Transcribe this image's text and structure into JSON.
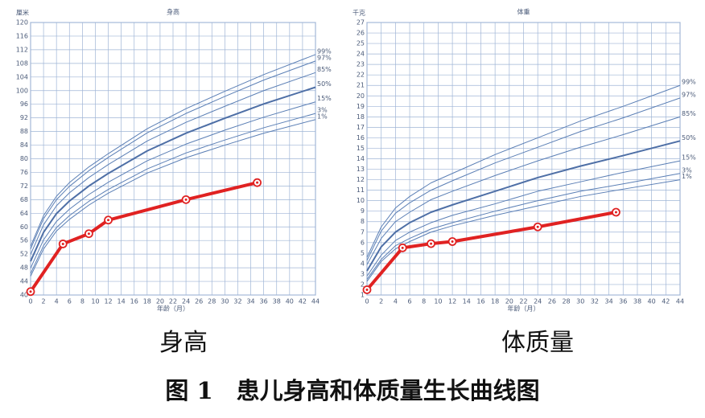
{
  "chart_data": [
    {
      "type": "line",
      "title": "身高",
      "y_label": "厘米",
      "x_label": "年龄（月）",
      "xlim": [
        0,
        44
      ],
      "xticks": [
        0,
        2,
        4,
        6,
        8,
        10,
        12,
        14,
        16,
        18,
        20,
        22,
        24,
        26,
        28,
        30,
        32,
        34,
        36,
        38,
        40,
        42,
        44
      ],
      "ylim": [
        40,
        120
      ],
      "yticks": [
        40,
        44,
        48,
        52,
        56,
        60,
        64,
        68,
        72,
        76,
        80,
        84,
        88,
        92,
        96,
        100,
        104,
        108,
        112,
        116,
        120
      ],
      "grid": true,
      "series": [
        {
          "name": "99%",
          "color": "#5b7fb5",
          "width": 1,
          "x": [
            0,
            2,
            4,
            6,
            9,
            12,
            18,
            24,
            30,
            36,
            44
          ],
          "values": [
            54.3,
            63.3,
            69.0,
            73.0,
            77.6,
            81.5,
            88.8,
            94.7,
            99.8,
            104.7,
            110.6
          ]
        },
        {
          "name": "97%",
          "color": "#5b7fb5",
          "width": 1,
          "x": [
            0,
            2,
            4,
            6,
            9,
            12,
            18,
            24,
            30,
            36,
            44
          ],
          "values": [
            53.5,
            62.4,
            68.0,
            71.9,
            76.5,
            80.4,
            87.6,
            93.3,
            98.3,
            103.1,
            108.7
          ]
        },
        {
          "name": "85%",
          "color": "#5b7fb5",
          "width": 1,
          "x": [
            0,
            2,
            4,
            6,
            9,
            12,
            18,
            24,
            30,
            36,
            44
          ],
          "values": [
            51.9,
            60.6,
            66.2,
            70.0,
            74.5,
            78.3,
            85.2,
            90.7,
            95.4,
            100.0,
            105.3
          ]
        },
        {
          "name": "50%",
          "color": "#4e6fa6",
          "width": 2,
          "x": [
            0,
            2,
            4,
            6,
            9,
            12,
            18,
            24,
            30,
            36,
            44
          ],
          "values": [
            49.9,
            58.4,
            63.9,
            67.6,
            72.0,
            75.7,
            82.3,
            87.5,
            91.9,
            96.1,
            101.0
          ]
        },
        {
          "name": "15%",
          "color": "#5b7fb5",
          "width": 1,
          "x": [
            0,
            2,
            4,
            6,
            9,
            12,
            18,
            24,
            30,
            36,
            44
          ],
          "values": [
            47.9,
            56.2,
            61.6,
            65.2,
            69.5,
            73.1,
            79.4,
            84.3,
            88.4,
            92.2,
            96.7
          ]
        },
        {
          "name": "3%",
          "color": "#5b7fb5",
          "width": 1,
          "x": [
            0,
            2,
            4,
            6,
            9,
            12,
            18,
            24,
            30,
            36,
            44
          ],
          "values": [
            46.3,
            54.5,
            59.8,
            63.3,
            67.5,
            71.0,
            77.0,
            81.7,
            85.5,
            89.1,
            93.3
          ]
        },
        {
          "name": "1%",
          "color": "#5b7fb5",
          "width": 1,
          "x": [
            0,
            2,
            4,
            6,
            9,
            12,
            18,
            24,
            30,
            36,
            44
          ],
          "values": [
            45.5,
            53.5,
            58.8,
            62.2,
            66.4,
            69.9,
            75.8,
            80.3,
            84.0,
            87.5,
            91.5
          ]
        },
        {
          "color": "#e02222",
          "width": 4,
          "markers": true,
          "x": [
            0,
            5,
            9,
            12,
            24,
            35
          ],
          "values": [
            41,
            55,
            58,
            62,
            68,
            73
          ]
        }
      ]
    },
    {
      "type": "line",
      "title": "体重",
      "y_label": "千克",
      "x_label": "年龄（月）",
      "xlim": [
        0,
        44
      ],
      "xticks": [
        0,
        2,
        4,
        6,
        8,
        10,
        12,
        14,
        16,
        18,
        20,
        22,
        24,
        26,
        28,
        30,
        32,
        34,
        36,
        38,
        40,
        42,
        44
      ],
      "ylim": [
        1,
        27
      ],
      "yticks": [
        1,
        2,
        3,
        4,
        5,
        6,
        7,
        8,
        9,
        10,
        11,
        12,
        13,
        14,
        15,
        16,
        17,
        18,
        19,
        20,
        21,
        22,
        23,
        24,
        25,
        26,
        27
      ],
      "grid": true,
      "series": [
        {
          "name": "99%",
          "color": "#5b7fb5",
          "width": 1,
          "x": [
            0,
            2,
            4,
            6,
            9,
            12,
            18,
            24,
            30,
            36,
            44
          ],
          "values": [
            4.6,
            7.5,
            9.3,
            10.4,
            11.7,
            12.6,
            14.4,
            16.0,
            17.6,
            19.0,
            21.0
          ]
        },
        {
          "name": "97%",
          "color": "#5b7fb5",
          "width": 1,
          "x": [
            0,
            2,
            4,
            6,
            9,
            12,
            18,
            24,
            30,
            36,
            44
          ],
          "values": [
            4.3,
            7.1,
            8.8,
            9.8,
            11.0,
            11.9,
            13.6,
            15.1,
            16.6,
            17.9,
            19.8
          ]
        },
        {
          "name": "85%",
          "color": "#5b7fb5",
          "width": 1,
          "x": [
            0,
            2,
            4,
            6,
            9,
            12,
            18,
            24,
            30,
            36,
            44
          ],
          "values": [
            3.9,
            6.4,
            8.0,
            8.9,
            10.1,
            10.9,
            12.4,
            13.8,
            15.1,
            16.3,
            18.0
          ]
        },
        {
          "name": "50%",
          "color": "#4e6fa6",
          "width": 2,
          "x": [
            0,
            2,
            4,
            6,
            9,
            12,
            18,
            24,
            30,
            36,
            44
          ],
          "values": [
            3.3,
            5.6,
            7.0,
            7.9,
            8.9,
            9.6,
            10.9,
            12.2,
            13.3,
            14.3,
            15.7
          ]
        },
        {
          "name": "15%",
          "color": "#5b7fb5",
          "width": 1,
          "x": [
            0,
            2,
            4,
            6,
            9,
            12,
            18,
            24,
            30,
            36,
            44
          ],
          "values": [
            2.8,
            4.8,
            6.2,
            7.0,
            7.9,
            8.6,
            9.7,
            10.9,
            11.8,
            12.7,
            13.8
          ]
        },
        {
          "name": "3%",
          "color": "#5b7fb5",
          "width": 1,
          "x": [
            0,
            2,
            4,
            6,
            9,
            12,
            18,
            24,
            30,
            36,
            44
          ],
          "values": [
            2.5,
            4.4,
            5.7,
            6.4,
            7.3,
            7.9,
            9.0,
            10.0,
            10.9,
            11.6,
            12.6
          ]
        },
        {
          "name": "1%",
          "color": "#5b7fb5",
          "width": 1,
          "x": [
            0,
            2,
            4,
            6,
            9,
            12,
            18,
            24,
            30,
            36,
            44
          ],
          "values": [
            2.3,
            4.2,
            5.4,
            6.1,
            7.0,
            7.6,
            8.6,
            9.5,
            10.4,
            11.1,
            12.0
          ]
        },
        {
          "color": "#e02222",
          "width": 4,
          "markers": true,
          "x": [
            0,
            5,
            9,
            12,
            24,
            35
          ],
          "values": [
            1.5,
            5.5,
            5.9,
            6.1,
            7.5,
            8.9
          ]
        }
      ]
    }
  ],
  "panel_labels": [
    "身高",
    "体质量"
  ],
  "caption": "图 1　患儿身高和体质量生长曲线图"
}
